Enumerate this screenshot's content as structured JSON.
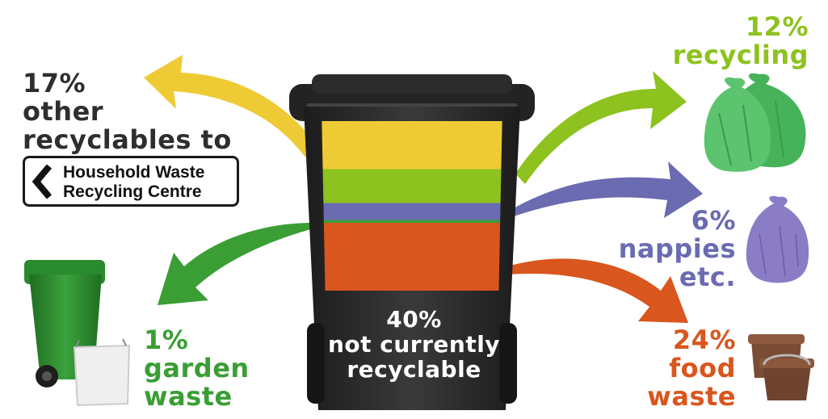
{
  "colors": {
    "recycling": "#8dc21f",
    "other_recyclables": "#eecb35",
    "nappies": "#6a6bb1",
    "food_waste": "#d9561e",
    "garden_waste": "#3a9e35",
    "not_recyclable": "#242424",
    "dark_text": "#2e2e2e"
  },
  "labels": {
    "other_recyclables": {
      "percent": "17%",
      "line1": "other",
      "line2": "recyclables to"
    },
    "sign": {
      "line1": "Household Waste",
      "line2": "Recycling Centre",
      "icon": "chevron-left-icon"
    },
    "recycling": {
      "percent": "12%",
      "text": "recycling"
    },
    "nappies": {
      "percent": "6%",
      "line1": "nappies",
      "line2": "etc."
    },
    "food_waste": {
      "percent": "24%",
      "line1": "food",
      "line2": "waste"
    },
    "garden_waste": {
      "percent": "1%",
      "line1": "garden",
      "line2": "waste"
    },
    "not_recyclable": {
      "percent": "40%",
      "line1": "not currently",
      "line2": "recyclable"
    }
  },
  "bin_segments": [
    {
      "name": "other-recyclables",
      "percent": 17,
      "color": "#eecb35"
    },
    {
      "name": "recycling",
      "percent": 12,
      "color": "#8dc21f"
    },
    {
      "name": "nappies",
      "percent": 6,
      "color": "#6a6bb1"
    },
    {
      "name": "garden-waste",
      "percent": 1,
      "color": "#3a9e35"
    },
    {
      "name": "food-waste",
      "percent": 24,
      "color": "#d9561e"
    }
  ],
  "icons": [
    "green-bag-icon",
    "purple-bag-icon",
    "food-caddy-icon",
    "green-wheelie-bin-icon",
    "garden-sack-icon",
    "wheelie-bin-icon"
  ]
}
